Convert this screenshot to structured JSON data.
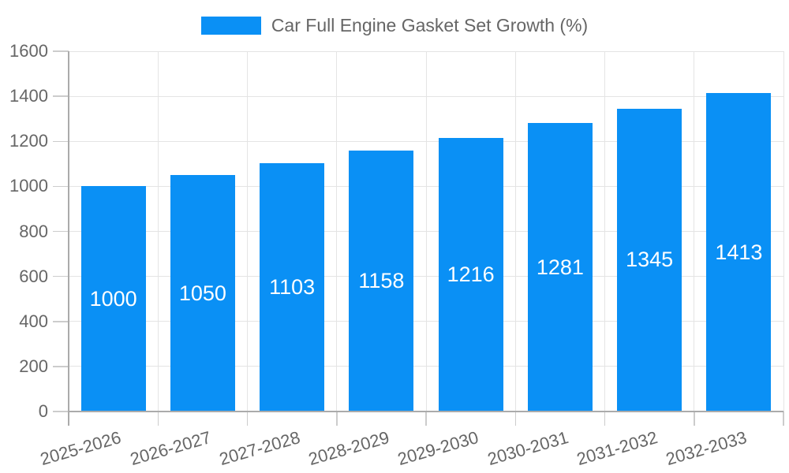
{
  "chart_data": {
    "type": "bar",
    "title": "Car Full Engine Gasket Set Growth (%)",
    "legend": [
      "Car Full Engine Gasket Set Growth (%)"
    ],
    "legend_position": "top-center",
    "categories": [
      "2025-2026",
      "2026-2027",
      "2027-2028",
      "2028-2029",
      "2029-2030",
      "2030-2031",
      "2031-2032",
      "2032-2033"
    ],
    "values": [
      1000,
      1050,
      1103,
      1158,
      1216,
      1281,
      1345,
      1413
    ],
    "bar_labels": [
      "1000",
      "1050",
      "1103",
      "1158",
      "1216",
      "1281",
      "1345",
      "1413"
    ],
    "xlabel": "",
    "ylabel": "",
    "ylim": [
      0,
      1600
    ],
    "yticks": [
      0,
      200,
      400,
      600,
      800,
      1000,
      1200,
      1400,
      1600
    ],
    "grid": true,
    "bar_labels_inside": true
  },
  "colors": {
    "bar": "#0a90f5",
    "grid_line": "#e4e4e4",
    "axis_line": "#ababab",
    "tick_mark": "#cccccc",
    "tick_text": "#666666",
    "legend_text": "#666666",
    "bar_label_text": "#ffffff",
    "background": "#ffffff"
  }
}
